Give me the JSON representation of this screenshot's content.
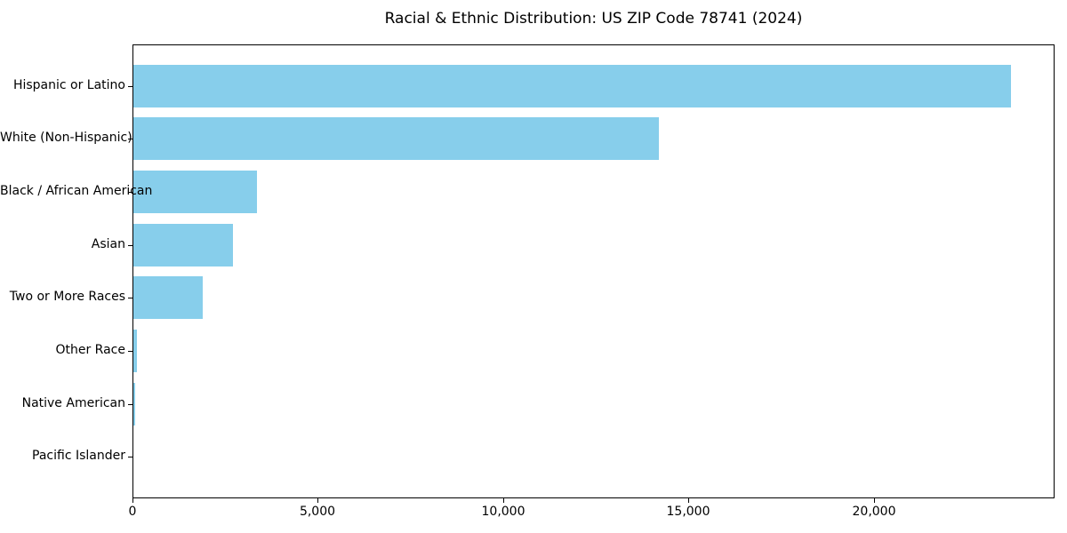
{
  "chart_data": {
    "type": "bar",
    "orientation": "horizontal",
    "title": "Racial & Ethnic Distribution: US ZIP Code 78741 (2024)",
    "categories": [
      "Hispanic or Latino",
      "White (Non-Hispanic)",
      "Black / African American",
      "Asian",
      "Two or More Races",
      "Other Race",
      "Native American",
      "Pacific Islander"
    ],
    "values": [
      23670,
      14170,
      3330,
      2680,
      1860,
      90,
      50,
      0
    ],
    "xlabel": "",
    "ylabel": "",
    "xlim": [
      0,
      24870
    ],
    "x_ticks": [
      0,
      5000,
      10000,
      15000,
      20000
    ],
    "x_tick_labels": [
      "0",
      "5,000",
      "10,000",
      "15,000",
      "20,000"
    ],
    "bar_color": "#87CEEB",
    "grid": false,
    "legend": "none",
    "background_color": "#ffffff",
    "spine_color": "#000000"
  }
}
